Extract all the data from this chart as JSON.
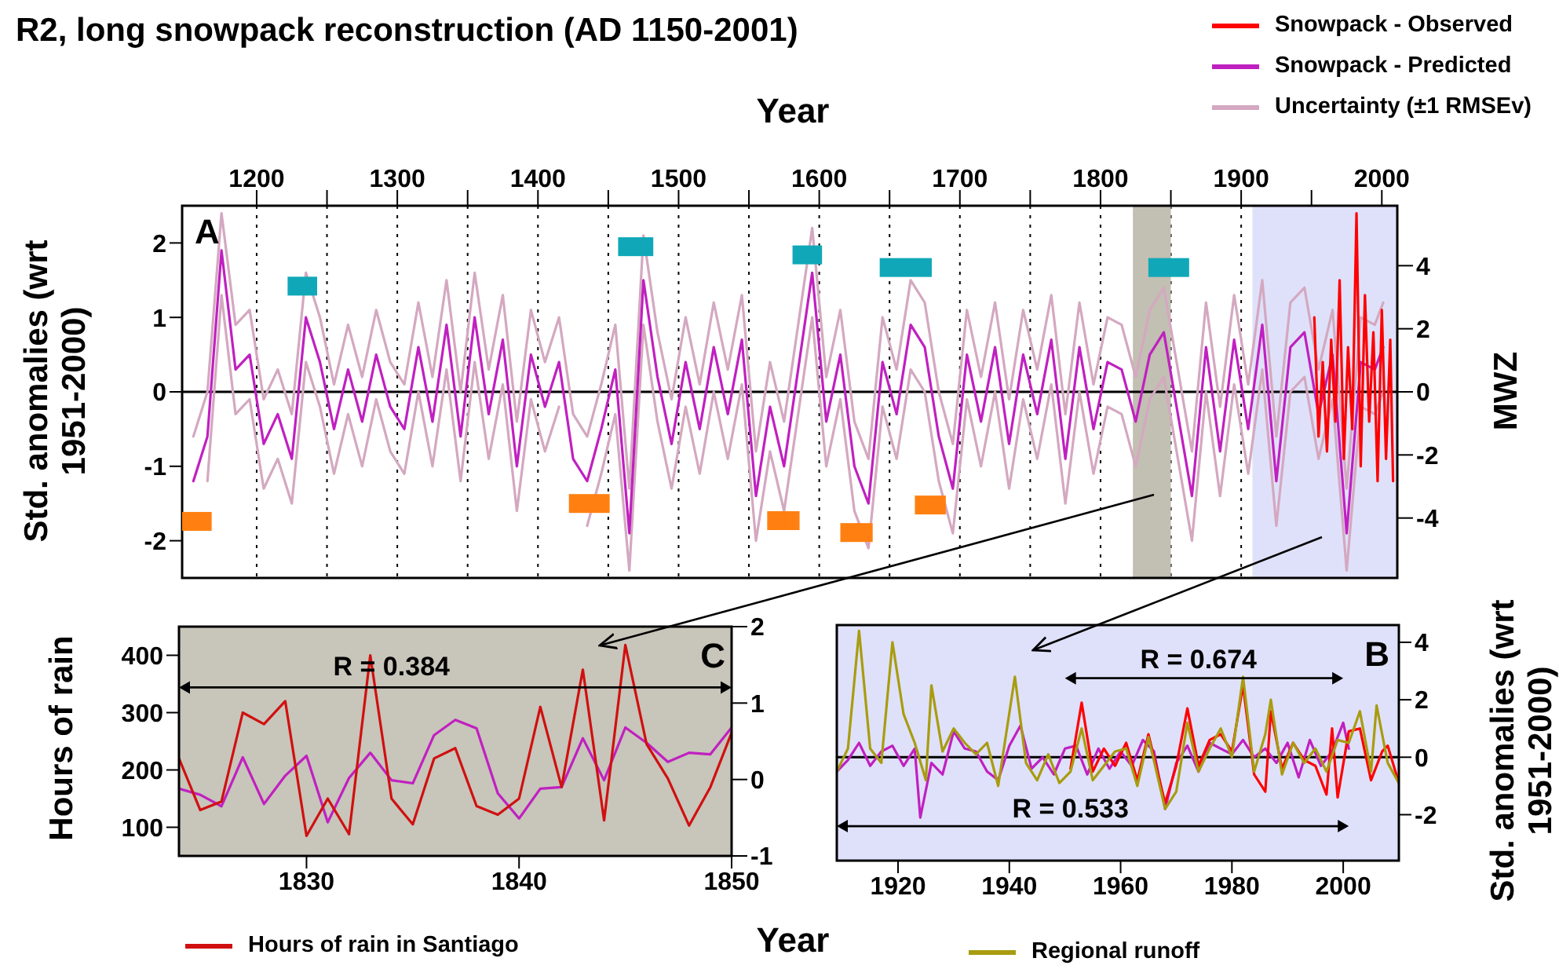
{
  "chart_data": [
    {
      "type": "line",
      "title": "R2, long snowpack reconstruction (AD 1150-2001)",
      "xlabel": "Year",
      "ylabel": "Std. anomalies (wrt 1951-2000)",
      "y2label": "MWZ",
      "xlim": [
        1147,
        2011
      ],
      "xticks": [
        1200,
        {
          "value": 1250,
          "label": null
        },
        1300,
        {
          "value": 1350,
          "label": null
        },
        1400,
        {
          "value": 1450,
          "label": null
        },
        1500,
        {
          "value": 1550,
          "label": null
        },
        1600,
        {
          "value": 1650,
          "label": null
        },
        1700,
        {
          "value": 1750,
          "label": null
        },
        1800,
        {
          "value": 1850,
          "label": null
        },
        1900,
        {
          "value": 1950,
          "label": null
        },
        2000
      ],
      "ylim": [
        -2.5,
        2.5
      ],
      "yticks": [
        -2,
        -1,
        0,
        1,
        2
      ],
      "y2lim": [
        -5.9,
        5.9
      ],
      "y2ticks": [
        -4,
        -2,
        0,
        2,
        4
      ],
      "grid": "x",
      "legend": "top right",
      "marker": "none",
      "line_style": "solid",
      "ref_lines": [
        {
          "axis": "y",
          "value": 0,
          "color": "#000000"
        }
      ],
      "bands": [
        {
          "axis": "x",
          "from": 1823,
          "to": 1850,
          "color": "#c2bfb3"
        },
        {
          "axis": "x",
          "from": 1908,
          "to": 2011,
          "color": "#dfe1fa"
        }
      ],
      "annotations": [
        "A"
      ],
      "series": [
        {
          "name": "Snowpack - Observed",
          "color": "#ff0000",
          "x": [
            1952,
            1955,
            1958,
            1961,
            1964,
            1967,
            1970,
            1973,
            1976,
            1979,
            1982,
            1985,
            1988,
            1991,
            1994,
            1997,
            2000,
            2003,
            2006,
            2008
          ],
          "values": [
            1.0,
            -0.6,
            0.4,
            -0.8,
            0.7,
            -0.4,
            1.5,
            -0.9,
            0.6,
            -0.5,
            2.4,
            -1.0,
            1.3,
            -0.4,
            0.8,
            -1.2,
            1.1,
            -0.9,
            0.7,
            -1.2
          ]
        },
        {
          "name": "Snowpack - Predicted",
          "color": "#c020c0",
          "x": [
            1155,
            1165,
            1175,
            1185,
            1195,
            1205,
            1215,
            1225,
            1235,
            1245,
            1255,
            1265,
            1275,
            1285,
            1295,
            1305,
            1315,
            1325,
            1335,
            1345,
            1355,
            1365,
            1375,
            1385,
            1395,
            1405,
            1415,
            1425,
            1435,
            1445,
            1455,
            1465,
            1475,
            1485,
            1495,
            1505,
            1515,
            1525,
            1535,
            1545,
            1555,
            1565,
            1575,
            1585,
            1595,
            1605,
            1615,
            1625,
            1635,
            1645,
            1655,
            1665,
            1675,
            1685,
            1695,
            1705,
            1715,
            1725,
            1735,
            1745,
            1755,
            1765,
            1775,
            1785,
            1795,
            1805,
            1815,
            1825,
            1835,
            1845,
            1855,
            1865,
            1875,
            1885,
            1895,
            1905,
            1915,
            1925,
            1935,
            1945,
            1955,
            1965,
            1975,
            1985,
            1995,
            2001
          ],
          "values": [
            -1.2,
            -0.6,
            1.9,
            0.3,
            0.5,
            -0.7,
            -0.3,
            -0.9,
            1.0,
            0.4,
            -0.5,
            0.3,
            -0.4,
            0.5,
            -0.2,
            -0.5,
            0.6,
            -0.4,
            0.9,
            -0.6,
            1.0,
            -0.3,
            0.7,
            -1.0,
            0.5,
            -0.2,
            0.4,
            -0.9,
            -1.2,
            -0.5,
            0.3,
            -1.9,
            1.5,
            0.2,
            -0.7,
            0.4,
            -0.5,
            0.6,
            -0.3,
            0.7,
            -1.4,
            -0.2,
            -1.0,
            0.3,
            1.6,
            -0.4,
            0.5,
            -1.0,
            -1.5,
            0.4,
            -0.3,
            0.9,
            0.6,
            -0.6,
            -1.3,
            0.5,
            -0.4,
            0.6,
            -0.7,
            0.5,
            -0.3,
            0.7,
            -0.9,
            0.6,
            -0.5,
            0.4,
            0.3,
            -0.4,
            0.5,
            0.8,
            -0.3,
            -1.4,
            0.6,
            -0.8,
            0.7,
            -0.5,
            0.9,
            -1.2,
            0.6,
            0.8,
            -0.3,
            0.5,
            -1.9,
            0.4,
            0.3,
            0.6
          ]
        },
        {
          "name": "Uncertainty (±1 RMSEv)",
          "color": "#d4a8c0",
          "x": [
            1155,
            1165,
            1175,
            1185,
            1195,
            1205,
            1215,
            1225,
            1235,
            1245,
            1255,
            1265,
            1275,
            1285,
            1295,
            1305,
            1315,
            1325,
            1335,
            1345,
            1355,
            1365,
            1375,
            1385,
            1395,
            1405,
            1415,
            1425,
            1435,
            1445,
            1455,
            1465,
            1475,
            1485,
            1495,
            1505,
            1515,
            1525,
            1535,
            1545,
            1555,
            1565,
            1575,
            1585,
            1595,
            1605,
            1615,
            1625,
            1635,
            1645,
            1655,
            1665,
            1675,
            1685,
            1695,
            1705,
            1715,
            1725,
            1735,
            1745,
            1755,
            1765,
            1775,
            1785,
            1795,
            1805,
            1815,
            1825,
            1835,
            1845,
            1855,
            1865,
            1875,
            1885,
            1895,
            1905,
            1915,
            1925,
            1935,
            1945,
            1955,
            1965,
            1975,
            1985,
            1995,
            2001
          ],
          "values": [
            -0.6,
            0,
            2.4,
            0.9,
            1.1,
            -0.1,
            0.3,
            -0.3,
            1.6,
            1.0,
            0.1,
            0.9,
            0.2,
            1.1,
            0.4,
            0.1,
            1.2,
            0.2,
            1.5,
            0,
            1.6,
            0.3,
            1.3,
            -0.4,
            1.1,
            0.4,
            1.0,
            -0.3,
            -0.6,
            0.1,
            0.9,
            -1.3,
            2.1,
            0.8,
            -0.1,
            1.0,
            0.1,
            1.2,
            0.3,
            1.3,
            -0.8,
            0.4,
            -0.4,
            0.9,
            2.2,
            0.2,
            1.1,
            -0.4,
            -0.9,
            1.0,
            0.3,
            1.5,
            1.2,
            0,
            -0.7,
            1.1,
            0.2,
            1.2,
            -0.1,
            1.1,
            0.3,
            1.3,
            -0.3,
            1.2,
            0.1,
            1.0,
            0.9,
            0.2,
            1.1,
            1.4,
            0.3,
            -0.8,
            1.2,
            -0.2,
            1.3,
            0.1,
            1.5,
            -0.6,
            1.2,
            1.4,
            0.3,
            1.1,
            -1.3,
            1.0,
            0.9,
            1.2
          ]
        },
        {
          "color": "#d4a8c0",
          "x": [
            1165,
            1175,
            1185,
            1195,
            1205,
            1215,
            1225,
            1235,
            1245,
            1255,
            1265,
            1275,
            1285,
            1295,
            1305,
            1315,
            1325,
            1335,
            1345,
            1355,
            1365,
            1375,
            1385,
            1395,
            1405,
            1415,
            1425,
            1435,
            1445,
            1455,
            1465,
            1475,
            1485,
            1495,
            1505,
            1515,
            1525,
            1535,
            1545,
            1555,
            1565,
            1575,
            1585,
            1595,
            1605,
            1615,
            1625,
            1635,
            1645,
            1655,
            1665,
            1675,
            1685,
            1695,
            1705,
            1715,
            1725,
            1735,
            1745,
            1755,
            1765,
            1775,
            1785,
            1795,
            1805,
            1815,
            1825,
            1835,
            1845,
            1855,
            1865,
            1875,
            1885,
            1895,
            1905,
            1915,
            1925,
            1935,
            1945,
            1955,
            1965,
            1975,
            1985,
            1995,
            2001
          ],
          "values": [
            -1.2,
            1.3,
            -0.3,
            -0.1,
            -1.3,
            -0.9,
            -1.5,
            0.4,
            -0.2,
            -1.1,
            -0.3,
            -1.0,
            -0.1,
            -0.8,
            -1.1,
            0,
            -1.0,
            0.3,
            -1.2,
            0.4,
            -0.9,
            0.1,
            -1.6,
            -0.1,
            -0.8,
            -0.2,
            null,
            -1.8,
            -1.1,
            -0.3,
            -2.4,
            0.9,
            -0.4,
            -1.3,
            -0.2,
            -1.1,
            0,
            -0.9,
            0.1,
            -2.0,
            -0.8,
            -1.6,
            -0.3,
            1.0,
            -1.0,
            -0.1,
            -1.6,
            -2.1,
            -0.2,
            -0.9,
            0.3,
            0,
            -1.2,
            -1.9,
            -0.1,
            -1.0,
            0,
            -1.3,
            -0.1,
            -0.9,
            0.1,
            -1.5,
            0,
            -1.1,
            -0.2,
            -0.3,
            -1.0,
            -0.1,
            0.2,
            -0.9,
            -2.0,
            0,
            -1.4,
            0.1,
            -1.1,
            0.3,
            -1.8,
            0,
            0.2,
            -0.9,
            -0.1,
            -2.4,
            -0.2,
            -0.3,
            0
          ]
        }
      ]
    },
    {
      "type": "line",
      "xlabel": "Year",
      "ylabel": "Hours of rain",
      "xlim": [
        1824,
        1850
      ],
      "xticks": [
        1830,
        1840,
        1850
      ],
      "ylim": [
        50,
        450
      ],
      "yticks": [
        100,
        200,
        300,
        400
      ],
      "y2lim": [
        -1,
        2
      ],
      "y2ticks": [
        -1,
        0,
        1,
        2
      ],
      "legend": "bottom",
      "marker": "none",
      "line_style": "solid",
      "annotations": [
        "C",
        "R = 0.384"
      ],
      "x": [
        1824,
        1825,
        1826,
        1827,
        1828,
        1829,
        1830,
        1831,
        1832,
        1833,
        1834,
        1835,
        1836,
        1837,
        1838,
        1839,
        1840,
        1841,
        1842,
        1843,
        1844,
        1845,
        1846,
        1847,
        1848,
        1849,
        1850
      ],
      "series": [
        {
          "name": "Hours of rain in Santiago",
          "color": "#d01010",
          "values": [
            220,
            130,
            145,
            300,
            280,
            320,
            85,
            150,
            88,
            400,
            150,
            105,
            220,
            238,
            137,
            122,
            150,
            310,
            170,
            375,
            112,
            418,
            245,
            185,
            103,
            170,
            265
          ]
        },
        {
          "color": "#c020c0",
          "axis": "y2",
          "values": [
            -0.12,
            -0.2,
            -0.35,
            0.29,
            -0.32,
            0.05,
            0.31,
            -0.56,
            0.02,
            0.35,
            -0.01,
            -0.05,
            0.58,
            0.78,
            0.67,
            -0.18,
            -0.51,
            -0.12,
            -0.1,
            0.54,
            -0.01,
            0.68,
            0.48,
            0.23,
            0.35,
            0.33,
            0.68
          ]
        }
      ]
    },
    {
      "type": "line",
      "ylabel": "Std. anomalies (wrt 1951-2000)",
      "xlim": [
        1909,
        2010
      ],
      "xticks": [
        1920,
        1940,
        1960,
        1980,
        2000
      ],
      "ylim": [
        -3.6,
        4.6
      ],
      "yticks": [
        -2,
        0,
        2,
        4
      ],
      "legend": "bottom",
      "marker": "none",
      "line_style": "solid",
      "ref_lines": [
        {
          "axis": "y",
          "value": 0,
          "color": "#000000"
        }
      ],
      "annotations": [
        "B",
        "R = 0.674",
        "R = 0.533"
      ],
      "series": [
        {
          "name": "Regional runoff",
          "color": "#a89c10",
          "x": [
            1909,
            1911,
            1913,
            1915,
            1917,
            1919,
            1921,
            1923,
            1925,
            1926,
            1928,
            1930,
            1932,
            1934,
            1936,
            1938,
            1941,
            1943,
            1945,
            1947,
            1949,
            1951,
            1953,
            1955,
            1957,
            1959,
            1961,
            1963,
            1965,
            1968,
            1970,
            1972,
            1974,
            1976,
            1978,
            1980,
            1982,
            1984,
            1986,
            1987,
            1989,
            1991,
            1993,
            1995,
            1997,
            1999,
            2001,
            2003,
            2005,
            2006,
            2008,
            2010
          ],
          "values": [
            -0.5,
            0.3,
            4.4,
            0.3,
            -0.2,
            4.0,
            1.5,
            0.5,
            -0.8,
            2.5,
            0.2,
            1.0,
            0.5,
            0.1,
            0.5,
            -1.0,
            2.8,
            -0.2,
            -0.8,
            0.1,
            -0.9,
            -0.5,
            1.0,
            -0.8,
            -0.3,
            0.2,
            0.3,
            -1.0,
            0.7,
            -1.8,
            -1.2,
            1.2,
            -0.5,
            0.3,
            1.0,
            0.0,
            2.8,
            -0.5,
            0.8,
            2.0,
            -0.6,
            0.5,
            -0.2,
            0.3,
            -0.5,
            0.6,
            0.5,
            1.6,
            -0.5,
            1.8,
            -0.2,
            -0.9
          ]
        },
        {
          "color": "#ff0000",
          "x": [
            1951,
            1953,
            1955,
            1957,
            1959,
            1961,
            1963,
            1965,
            1968,
            1970,
            1972,
            1974,
            1976,
            1978,
            1980,
            1982,
            1984,
            1986,
            1987,
            1989,
            1991,
            1993,
            1995,
            1997,
            1998,
            1999,
            2001,
            2003,
            2005,
            2007,
            2008,
            2010
          ],
          "values": [
            -0.4,
            1.9,
            -0.5,
            0.3,
            -0.3,
            0.5,
            -0.8,
            0.8,
            -1.6,
            -0.3,
            1.7,
            -0.3,
            0.6,
            0.8,
            0.2,
            2.5,
            -0.6,
            -1.2,
            1.6,
            -0.4,
            0.5,
            -0.1,
            -0.3,
            -1.3,
            1.0,
            -1.4,
            0.9,
            1.0,
            -0.8,
            0.2,
            0.4,
            -0.9
          ]
        },
        {
          "color": "#c020c0",
          "x": [
            1909,
            1911,
            1913,
            1915,
            1917,
            1919,
            1921,
            1923,
            1924,
            1926,
            1928,
            1930,
            1932,
            1934,
            1936,
            1938,
            1940,
            1942,
            1944,
            1946,
            1948,
            1950,
            1952,
            1954,
            1956,
            1958,
            1960,
            1962,
            1964,
            1966,
            1968,
            1970,
            1972,
            1974,
            1976,
            1978,
            1980,
            1982,
            1984,
            1986,
            1988,
            1990,
            1992,
            1994,
            1996,
            1998,
            2000,
            2001
          ],
          "values": [
            -0.5,
            -0.1,
            0.5,
            -0.3,
            0.2,
            0.4,
            -0.3,
            0.3,
            -2.1,
            -0.2,
            -0.6,
            0.9,
            0.3,
            0.2,
            -0.5,
            -0.8,
            0.4,
            1.1,
            -0.4,
            0.0,
            -0.6,
            0.3,
            0.4,
            -0.6,
            0.3,
            -0.4,
            0.2,
            -0.3,
            0.6,
            0.2,
            -1.8,
            -0.2,
            0.4,
            -0.5,
            0.5,
            0.3,
            0.1,
            0.6,
            0.0,
            0.3,
            -0.2,
            0.5,
            -0.7,
            0.6,
            -0.3,
            0.2,
            1.2,
            0.3
          ]
        }
      ]
    }
  ]
}
